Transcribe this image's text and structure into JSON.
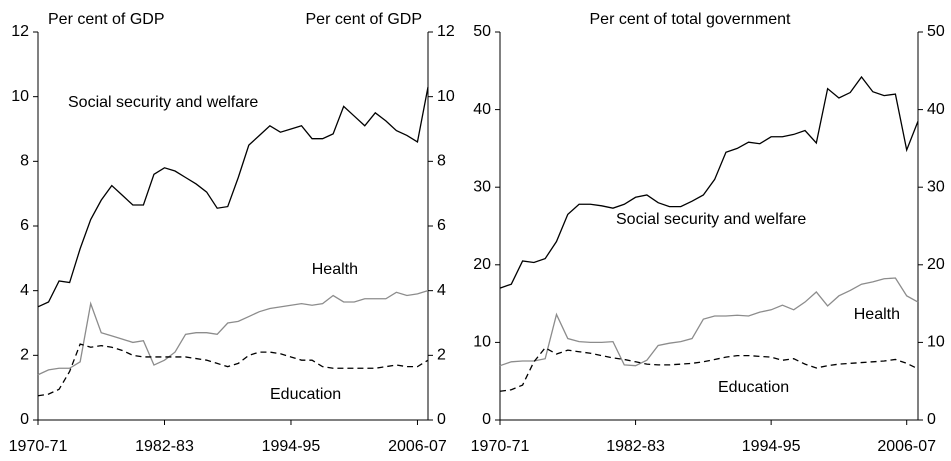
{
  "chart_data": [
    {
      "type": "line",
      "y_label": "Per cent of GDP",
      "y2_label": "Per cent of GDP",
      "categories": [
        "1970-71",
        null,
        null,
        null,
        null,
        null,
        null,
        null,
        null,
        null,
        null,
        null,
        "1982-83",
        null,
        null,
        null,
        null,
        null,
        null,
        null,
        null,
        null,
        null,
        null,
        "1994-95",
        null,
        null,
        null,
        null,
        null,
        null,
        null,
        null,
        null,
        null,
        null,
        "2006-07",
        null
      ],
      "ylim": [
        0,
        12
      ],
      "yticks": [
        0,
        2,
        4,
        6,
        8,
        10,
        12
      ],
      "y2lim": [
        0,
        12
      ],
      "y2ticks": [
        0,
        2,
        4,
        6,
        8,
        10,
        12
      ],
      "series": [
        {
          "name": "Social security and welfare",
          "color": "#000000",
          "dashed": false,
          "values": [
            3.5,
            3.65,
            4.3,
            4.25,
            5.3,
            6.2,
            6.8,
            7.25,
            6.95,
            6.65,
            6.65,
            7.6,
            7.8,
            7.7,
            7.5,
            7.3,
            7.05,
            6.55,
            6.6,
            7.5,
            8.5,
            8.8,
            9.1,
            8.9,
            9.0,
            9.1,
            8.7,
            8.7,
            8.85,
            9.7,
            9.4,
            9.1,
            9.5,
            9.25,
            8.95,
            8.8,
            8.6,
            10.3
          ]
        },
        {
          "name": "Health",
          "color": "#8c8c8c",
          "dashed": false,
          "values": [
            1.4,
            1.55,
            1.6,
            1.6,
            1.8,
            3.6,
            2.7,
            2.6,
            2.5,
            2.4,
            2.45,
            1.7,
            1.85,
            2.1,
            2.65,
            2.7,
            2.7,
            2.65,
            3.0,
            3.05,
            3.2,
            3.35,
            3.45,
            3.5,
            3.55,
            3.6,
            3.55,
            3.6,
            3.85,
            3.65,
            3.65,
            3.75,
            3.75,
            3.75,
            3.95,
            3.85,
            3.9,
            4.0
          ]
        },
        {
          "name": "Education",
          "color": "#000000",
          "dashed": true,
          "values": [
            0.75,
            0.8,
            0.95,
            1.5,
            2.35,
            2.25,
            2.3,
            2.25,
            2.15,
            2.0,
            1.95,
            1.95,
            1.95,
            1.95,
            1.95,
            1.9,
            1.85,
            1.75,
            1.65,
            1.75,
            2.0,
            2.1,
            2.1,
            2.05,
            1.95,
            1.85,
            1.85,
            1.65,
            1.6,
            1.6,
            1.6,
            1.6,
            1.6,
            1.65,
            1.7,
            1.65,
            1.65,
            1.85
          ]
        }
      ]
    },
    {
      "type": "line",
      "title": "Per cent of total government",
      "categories": [
        "1970-71",
        null,
        null,
        null,
        null,
        null,
        null,
        null,
        null,
        null,
        null,
        null,
        "1982-83",
        null,
        null,
        null,
        null,
        null,
        null,
        null,
        null,
        null,
        null,
        null,
        "1994-95",
        null,
        null,
        null,
        null,
        null,
        null,
        null,
        null,
        null,
        null,
        null,
        "2006-07",
        null
      ],
      "ylim": [
        0,
        50
      ],
      "yticks": [
        0,
        10,
        20,
        30,
        40,
        50
      ],
      "y2lim": [
        0,
        50
      ],
      "y2ticks": [
        0,
        10,
        20,
        30,
        40,
        50
      ],
      "series": [
        {
          "name": "Social security and welfare",
          "color": "#000000",
          "dashed": false,
          "values": [
            17,
            17.5,
            20.5,
            20.3,
            20.8,
            23,
            26.5,
            27.8,
            27.8,
            27.6,
            27.3,
            27.8,
            28.7,
            29,
            28,
            27.5,
            27.5,
            28.2,
            29,
            31,
            34.5,
            35,
            35.8,
            35.6,
            36.5,
            36.5,
            36.8,
            37.3,
            35.7,
            42.7,
            41.5,
            42.2,
            44.2,
            42.3,
            41.8,
            42,
            34.8,
            38.5
          ]
        },
        {
          "name": "Health",
          "color": "#8c8c8c",
          "dashed": false,
          "values": [
            7,
            7.5,
            7.6,
            7.6,
            7.9,
            13.6,
            10.5,
            10.1,
            10,
            10,
            10.1,
            7.1,
            7,
            7.7,
            9.6,
            9.9,
            10.1,
            10.5,
            13,
            13.4,
            13.4,
            13.5,
            13.4,
            13.9,
            14.2,
            14.8,
            14.2,
            15.2,
            16.5,
            14.7,
            16,
            16.7,
            17.5,
            17.8,
            18.2,
            18.3,
            16,
            15.2
          ]
        },
        {
          "name": "Education",
          "color": "#000000",
          "dashed": true,
          "values": [
            3.7,
            3.9,
            4.5,
            7.5,
            9.3,
            8.5,
            9,
            8.8,
            8.6,
            8.3,
            8,
            7.8,
            7.5,
            7.2,
            7.1,
            7.1,
            7.2,
            7.3,
            7.5,
            7.8,
            8.1,
            8.3,
            8.3,
            8.2,
            8.1,
            7.7,
            7.9,
            7.2,
            6.7,
            7.0,
            7.2,
            7.3,
            7.4,
            7.5,
            7.6,
            7.8,
            7.3,
            6.6
          ]
        }
      ]
    }
  ]
}
